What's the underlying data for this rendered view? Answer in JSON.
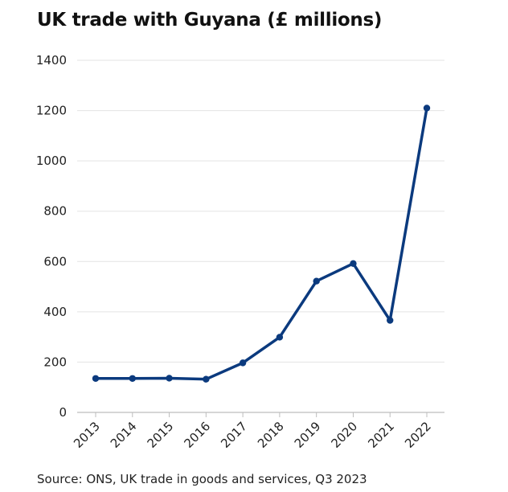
{
  "chart_data": {
    "type": "line",
    "title": "UK trade with Guyana (£ millions)",
    "source": "Source: ONS, UK trade in goods and services, Q3 2023",
    "categories": [
      "2013",
      "2014",
      "2015",
      "2016",
      "2017",
      "2018",
      "2019",
      "2020",
      "2021",
      "2022"
    ],
    "series": [
      {
        "values": [
          135,
          135,
          136,
          132,
          197,
          299,
          522,
          592,
          366,
          1210
        ]
      }
    ],
    "xlabel": "",
    "ylabel": "",
    "ylim": [
      0,
      1400
    ],
    "yticks": [
      "0",
      "200",
      "400",
      "600",
      "800",
      "1000",
      "1200",
      "1400"
    ],
    "grid": true,
    "legend": "none",
    "line_color": "#0b3a7e",
    "grid_color": "#e3e3e3"
  }
}
